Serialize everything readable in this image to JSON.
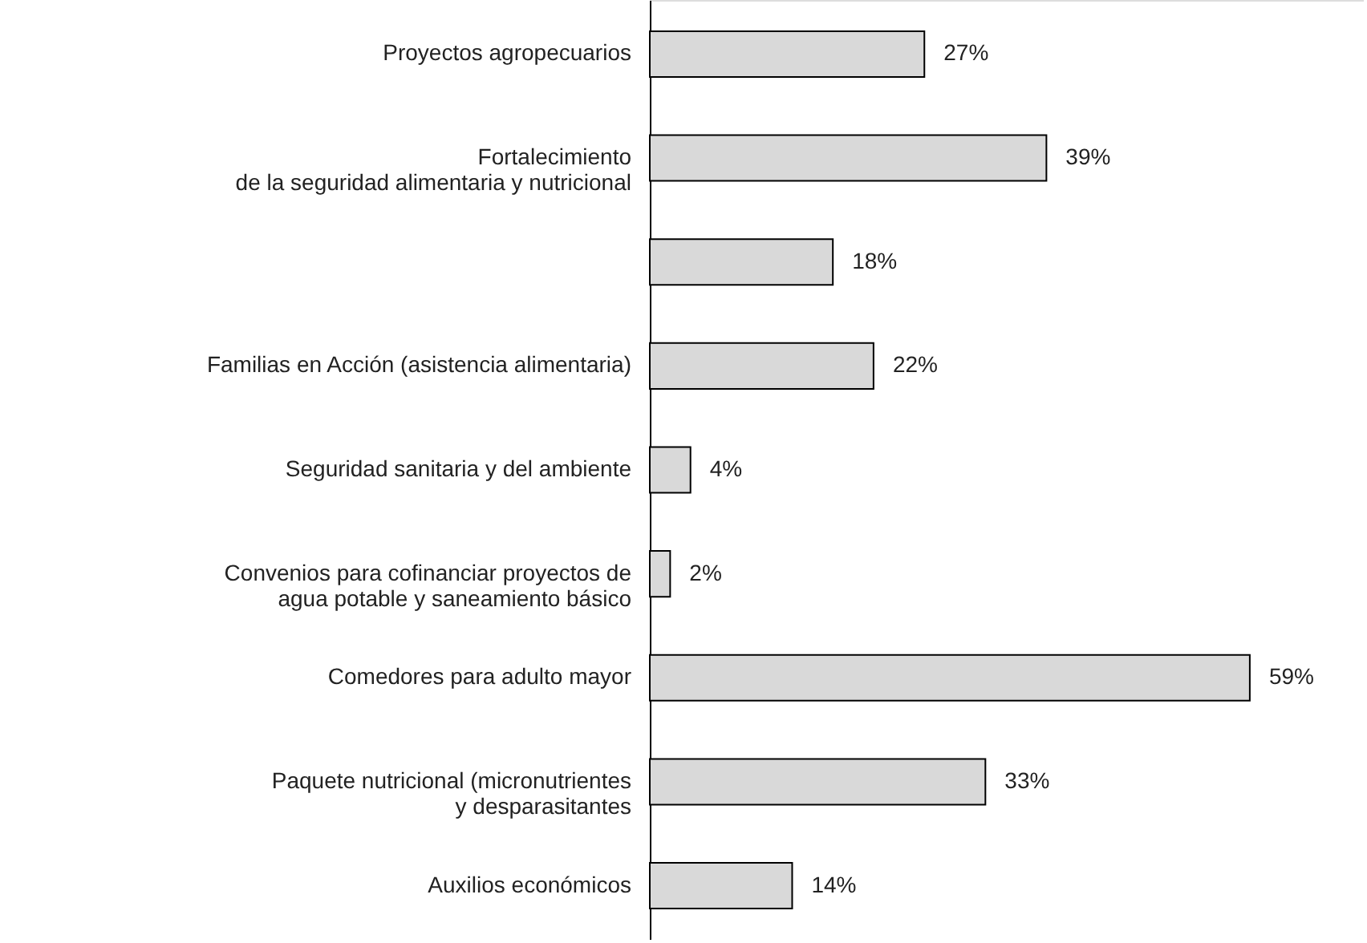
{
  "chart_data": {
    "type": "bar",
    "orientation": "horizontal",
    "categories": [
      "Proyectos agropecuarios",
      "Fortalecimiento\nde la seguridad alimentaria y nutricional",
      null,
      "Familias en Acción (asistencia alimentaria)",
      "Seguridad  sanitaria y del ambiente",
      "Convenios para cofinanciar proyectos de\nagua potable y saneamiento básico",
      "Comedores para adulto mayor",
      "Paquete nutricional (micronutrientes\ny desparasitantes",
      "Auxilios económicos"
    ],
    "values": [
      27,
      39,
      18,
      22,
      4,
      2,
      59,
      33,
      14
    ],
    "value_labels": [
      "27%",
      "39%",
      "18%",
      "22%",
      "4%",
      "2%",
      "59%",
      "33%",
      "14%"
    ],
    "color": "#d9d9d9",
    "grid": false
  }
}
